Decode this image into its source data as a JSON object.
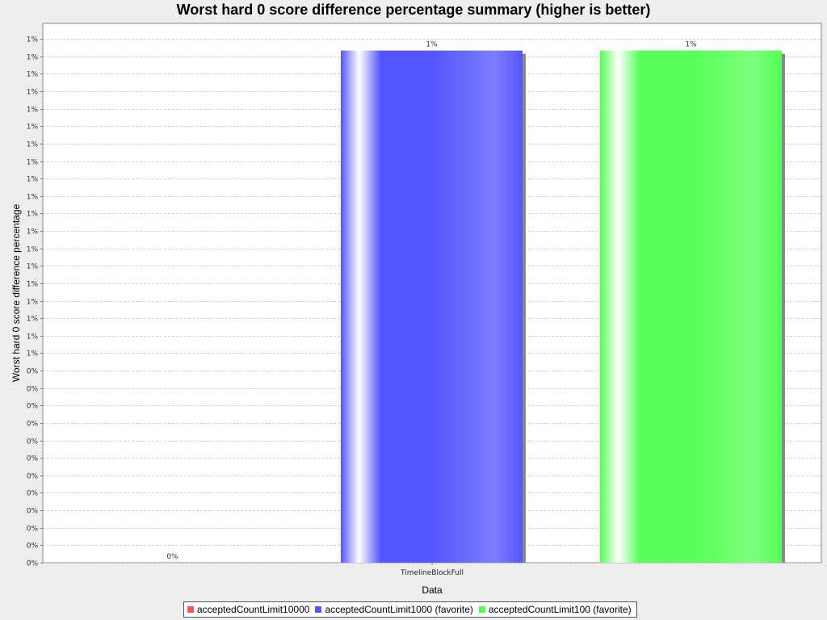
{
  "chart_data": {
    "type": "bar",
    "title": "Worst hard 0 score difference percentage summary (higher is better)",
    "xlabel": "Data",
    "ylabel": "Worst hard 0 score difference percentage",
    "categories": [
      "TimelineBlockFull"
    ],
    "series": [
      {
        "name": "acceptedCountLimit10000",
        "values": [
          0
        ],
        "label": "0%",
        "color": "#ff5555"
      },
      {
        "name": "acceptedCountLimit1000 (favorite)",
        "values": [
          1.32
        ],
        "label": "1%",
        "color": "#5555ff"
      },
      {
        "name": "acceptedCountLimit100 (favorite)",
        "values": [
          1.32
        ],
        "label": "1%",
        "color": "#55ff55"
      }
    ],
    "ylim": [
      0,
      1.39
    ],
    "y_tick_step": 0.045,
    "y_tick_format": "percent-integer",
    "grid": true,
    "legend": "bottom"
  }
}
